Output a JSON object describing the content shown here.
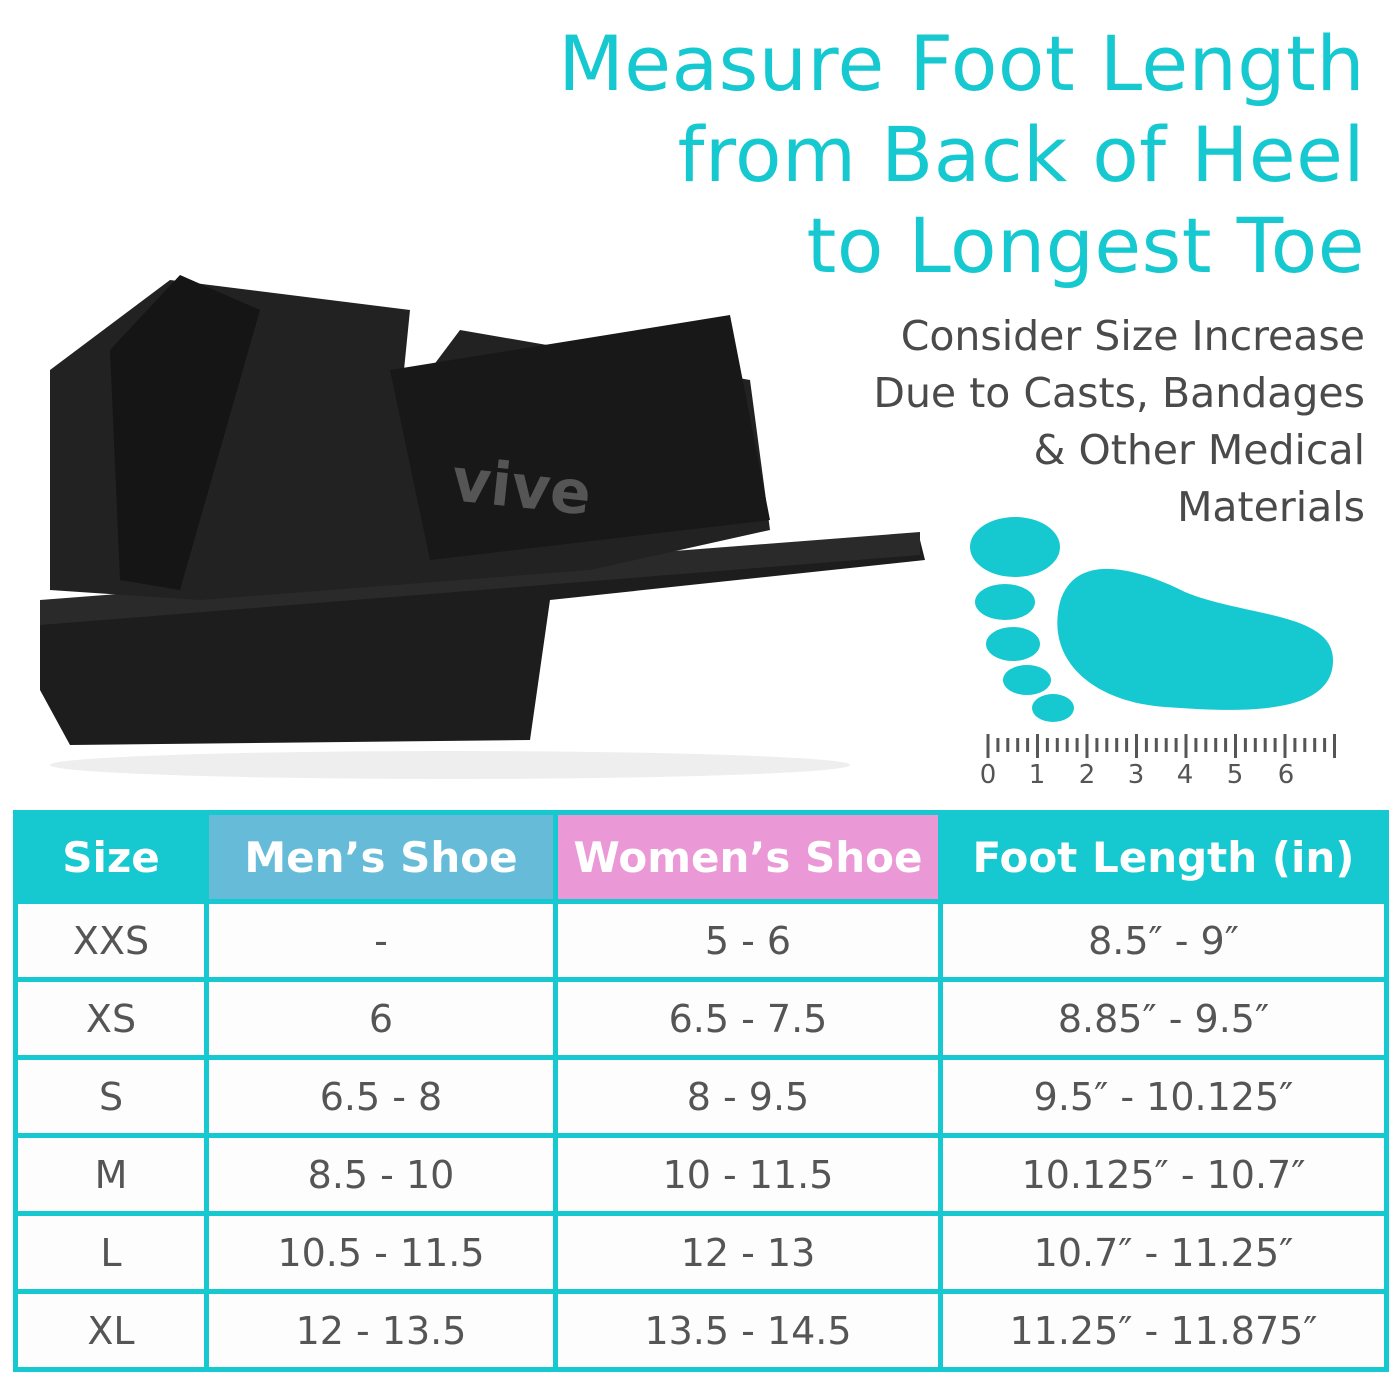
{
  "headline": [
    "Measure Foot Length",
    "from Back of Heel",
    "to Longest Toe"
  ],
  "subheadline": [
    "Consider Size Increase",
    "Due to Casts, Bandages",
    "& Other Medical",
    "Materials"
  ],
  "product": {
    "brand_logo": "vive",
    "image": "black post-op wedge shoe"
  },
  "ruler": {
    "labels": [
      "0",
      "1",
      "2",
      "3",
      "4",
      "5",
      "6"
    ]
  },
  "colors": {
    "accent": "#16c8cf",
    "men": "#66bcd8",
    "women": "#eb98d6",
    "text": "#555555"
  },
  "table": {
    "headers": [
      "Size",
      "Men’s Shoe",
      "Women’s Shoe",
      "Foot Length (in)"
    ],
    "rows": [
      [
        "XXS",
        "-",
        "5 - 6",
        "8.5″ - 9″"
      ],
      [
        "XS",
        "6",
        "6.5 - 7.5",
        "8.85″ - 9.5″"
      ],
      [
        "S",
        "6.5 - 8",
        "8 - 9.5",
        "9.5″ - 10.125″"
      ],
      [
        "M",
        "8.5 - 10",
        "10 - 11.5",
        "10.125″ - 10.7″"
      ],
      [
        "L",
        "10.5 - 11.5",
        "12 - 13",
        "10.7″ - 11.25″"
      ],
      [
        "XL",
        "12 - 13.5",
        "13.5 - 14.5",
        "11.25″ - 11.875″"
      ]
    ]
  }
}
